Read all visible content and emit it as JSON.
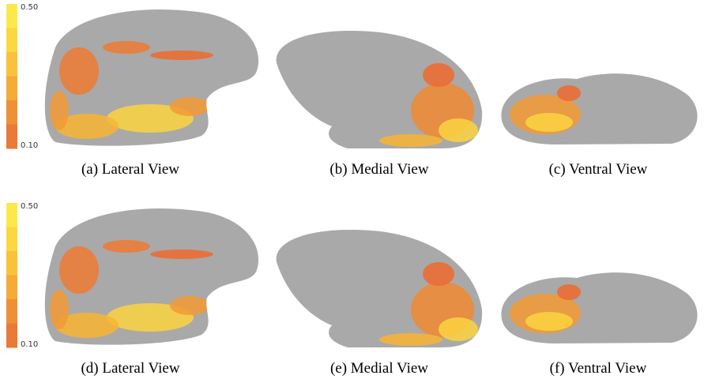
{
  "rows": [
    {
      "colorbar": {
        "max": "0.50",
        "min": "0.10"
      },
      "panels": [
        {
          "caption": "(a) Lateral View"
        },
        {
          "caption": "(b) Medial View"
        },
        {
          "caption": "(c) Ventral View"
        }
      ]
    },
    {
      "colorbar": {
        "max": "0.50",
        "min": "0.10"
      },
      "panels": [
        {
          "caption": "(d) Lateral View"
        },
        {
          "caption": "(e) Medial View"
        },
        {
          "caption": "(f) Ventral View"
        }
      ]
    }
  ]
}
